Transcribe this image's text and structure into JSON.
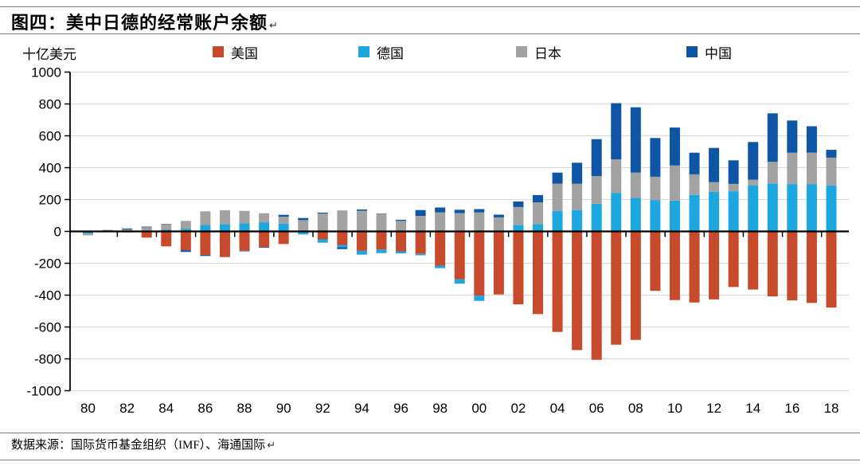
{
  "title": "图四：美中日德的经常账户余额",
  "title_return_mark": "↵",
  "footer": {
    "source_text": "数据来源：国际货币基金组织（IMF）、海通国际",
    "return_mark": "↵"
  },
  "chart_data": {
    "type": "bar",
    "stacked": true,
    "title": "图四：美中日德的经常账户余额",
    "unit_label": "十亿美元",
    "ylabel": "十亿美元",
    "xlabel": "",
    "ylim": [
      -1000,
      1000
    ],
    "ytick_step": 200,
    "grid": true,
    "legend_position": "top",
    "years": [
      1980,
      1981,
      1982,
      1983,
      1984,
      1985,
      1986,
      1987,
      1988,
      1989,
      1990,
      1991,
      1992,
      1993,
      1994,
      1995,
      1996,
      1997,
      1998,
      1999,
      2000,
      2001,
      2002,
      2003,
      2004,
      2005,
      2006,
      2007,
      2008,
      2009,
      2010,
      2011,
      2012,
      2013,
      2014,
      2015,
      2016,
      2017,
      2018
    ],
    "x_tick_labels": [
      "80",
      "82",
      "84",
      "86",
      "88",
      "90",
      "92",
      "94",
      "96",
      "98",
      "00",
      "02",
      "04",
      "06",
      "08",
      "10",
      "12",
      "14",
      "16",
      "18"
    ],
    "series": [
      {
        "key": "us",
        "name": "美国",
        "color": "#C74A2D",
        "values": [
          2,
          5,
          -6,
          -39,
          -94,
          -118,
          -147,
          -161,
          -121,
          -99,
          -79,
          3,
          -50,
          -85,
          -122,
          -114,
          -125,
          -141,
          -215,
          -301,
          -403,
          -396,
          -458,
          -519,
          -631,
          -745,
          -806,
          -711,
          -681,
          -373,
          -431,
          -446,
          -427,
          -349,
          -365,
          -408,
          -433,
          -449,
          -478
        ]
      },
      {
        "key": "germany",
        "name": "德国",
        "color": "#1DA7E0",
        "values": [
          -14,
          -3,
          5,
          5,
          10,
          17,
          40,
          46,
          50,
          57,
          48,
          -19,
          -21,
          -14,
          -24,
          -22,
          -13,
          -9,
          -16,
          -27,
          -33,
          0,
          41,
          46,
          128,
          134,
          173,
          240,
          210,
          197,
          193,
          229,
          249,
          252,
          289,
          301,
          297,
          295,
          288
        ]
      },
      {
        "key": "japan",
        "name": "日本",
        "color": "#A2A2A2",
        "values": [
          -11,
          5,
          7,
          21,
          35,
          49,
          86,
          87,
          79,
          57,
          44,
          68,
          112,
          132,
          130,
          111,
          66,
          97,
          119,
          115,
          119,
          88,
          112,
          136,
          172,
          165,
          174,
          212,
          159,
          146,
          221,
          129,
          60,
          46,
          36,
          136,
          197,
          200,
          175
        ]
      },
      {
        "key": "china",
        "name": "中国",
        "color": "#0E56A5",
        "values": [
          0,
          1,
          6,
          4,
          2,
          -11,
          -7,
          0,
          -4,
          -4,
          12,
          13,
          6,
          -12,
          8,
          2,
          7,
          37,
          31,
          21,
          21,
          17,
          35,
          46,
          69,
          132,
          232,
          353,
          410,
          243,
          238,
          136,
          215,
          148,
          236,
          304,
          202,
          165,
          49
        ]
      }
    ],
    "colors": {
      "grid": "#DADADA",
      "axis": "#000000",
      "rule": "#7F7F7F"
    }
  }
}
